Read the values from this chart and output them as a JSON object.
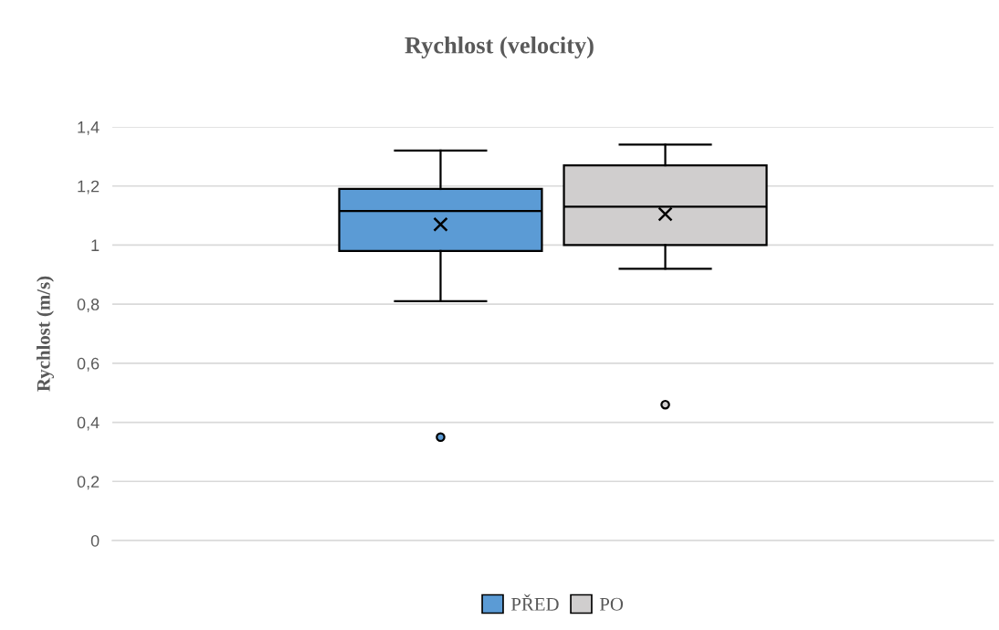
{
  "chart_data": {
    "type": "box",
    "title": "Rychlost (velocity)",
    "ylabel": "Rychlost (m/s)",
    "categories": [
      null
    ],
    "series": [
      {
        "name": "PŘED",
        "color": "#5b9bd5",
        "boxes": [
          {
            "low": 0.81,
            "q1": 0.98,
            "median": 1.115,
            "q3": 1.19,
            "high": 1.32,
            "mean": 1.07,
            "outliers": [
              0.35
            ]
          }
        ]
      },
      {
        "name": "PO",
        "color": "#d0cece",
        "boxes": [
          {
            "low": 0.92,
            "q1": 1.0,
            "median": 1.13,
            "q3": 1.27,
            "high": 1.34,
            "mean": 1.105,
            "outliers": [
              0.46
            ]
          }
        ]
      }
    ],
    "ylim": [
      0,
      1.4
    ],
    "yticks": [
      0,
      {
        "value": 0.2,
        "label": "0,2"
      },
      {
        "value": 0.4,
        "label": "0,4"
      },
      {
        "value": 0.6,
        "label": "0,6"
      },
      {
        "value": 0.8,
        "label": "0,8"
      },
      1,
      {
        "value": 1.2,
        "label": "1,2"
      },
      {
        "value": 1.4,
        "label": "1,4"
      }
    ],
    "grid": "y",
    "legend": "bottom",
    "marker": "cross"
  }
}
